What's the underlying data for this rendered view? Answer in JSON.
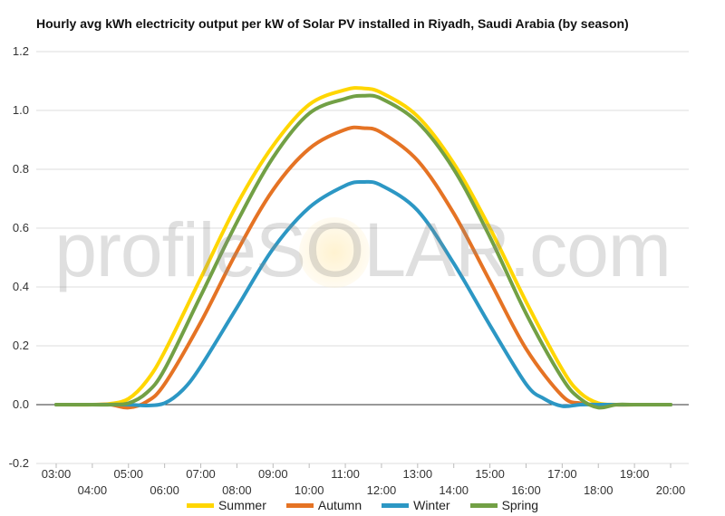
{
  "chart_data": {
    "type": "line",
    "title": "Hourly avg kWh electricity output per kW of Solar PV installed in Riyadh, Saudi Arabia (by season)",
    "xlabel": "",
    "ylabel": "",
    "ylim": [
      -0.2,
      1.2
    ],
    "yticks": [
      "-0.2",
      "0.0",
      "0.2",
      "0.4",
      "0.6",
      "0.8",
      "1.0",
      "1.2"
    ],
    "xlim": [
      3,
      20
    ],
    "xticks": [
      "03:00",
      "04:00",
      "05:00",
      "06:00",
      "07:00",
      "08:00",
      "09:00",
      "10:00",
      "11:00",
      "12:00",
      "13:00",
      "14:00",
      "15:00",
      "16:00",
      "17:00",
      "18:00",
      "19:00",
      "20:00"
    ],
    "grid": true,
    "legend": "bottom",
    "series": [
      {
        "name": "Summer",
        "color": "#FFD600",
        "x": [
          3,
          4,
          4.5,
          5,
          5.5,
          6,
          7,
          8,
          9,
          10,
          11,
          11.5,
          12,
          13,
          14,
          15,
          16,
          17,
          17.5,
          18,
          18.5,
          19,
          20
        ],
        "y": [
          0,
          0,
          0.003,
          0.02,
          0.08,
          0.18,
          0.43,
          0.68,
          0.88,
          1.02,
          1.07,
          1.075,
          1.06,
          0.98,
          0.82,
          0.6,
          0.35,
          0.12,
          0.04,
          0.005,
          0,
          0,
          0
        ]
      },
      {
        "name": "Autumn",
        "color": "#E57324",
        "x": [
          3,
          4,
          4.5,
          5,
          5.5,
          6,
          7,
          8,
          9,
          10,
          11,
          11.5,
          12,
          13,
          14,
          15,
          16,
          17,
          17.5,
          18,
          19,
          20
        ],
        "y": [
          0,
          0,
          0,
          -0.01,
          0.01,
          0.07,
          0.28,
          0.52,
          0.73,
          0.87,
          0.935,
          0.94,
          0.925,
          0.83,
          0.65,
          0.42,
          0.19,
          0.03,
          0.005,
          0,
          0,
          0
        ]
      },
      {
        "name": "Winter",
        "color": "#2C97C4",
        "x": [
          3,
          4,
          5,
          5.5,
          6,
          6.5,
          7,
          8,
          9,
          10,
          11,
          11.5,
          12,
          13,
          14,
          15,
          16,
          16.5,
          17,
          17.5,
          18,
          19,
          20
        ],
        "y": [
          0,
          0,
          0,
          -0.003,
          0.005,
          0.05,
          0.13,
          0.33,
          0.53,
          0.67,
          0.745,
          0.757,
          0.745,
          0.66,
          0.48,
          0.27,
          0.07,
          0.02,
          -0.005,
          0,
          0,
          0,
          0
        ]
      },
      {
        "name": "Spring",
        "color": "#72A045",
        "x": [
          3,
          4,
          4.5,
          5,
          5.5,
          6,
          7,
          8,
          9,
          10,
          11,
          11.5,
          12,
          13,
          14,
          15,
          16,
          17,
          17.5,
          18,
          18.5,
          19,
          20
        ],
        "y": [
          0,
          0,
          0,
          0.005,
          0.04,
          0.12,
          0.37,
          0.62,
          0.84,
          0.99,
          1.04,
          1.05,
          1.04,
          0.96,
          0.8,
          0.57,
          0.31,
          0.09,
          0.02,
          -0.01,
          0,
          0,
          0
        ]
      }
    ]
  },
  "watermark": "profileSOLAR.com"
}
